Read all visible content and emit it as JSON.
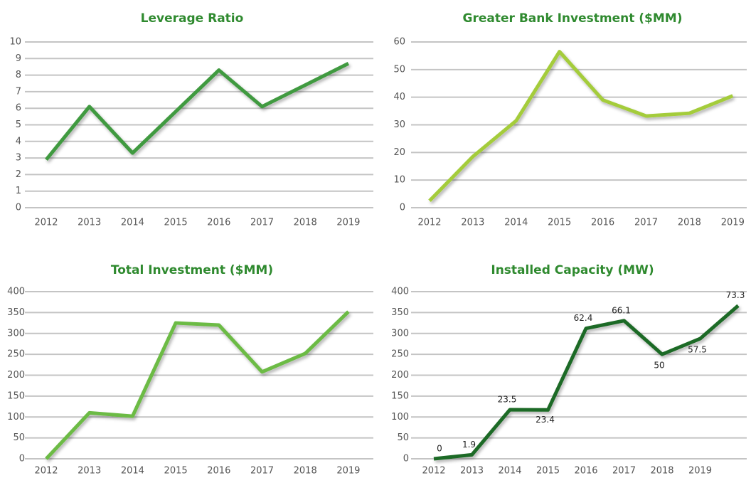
{
  "chart_data": [
    {
      "type": "line",
      "title": "Leverage Ratio",
      "categories": [
        "2012",
        "2013",
        "2014",
        "2015",
        "2016",
        "2017",
        "2018",
        "2019"
      ],
      "series": [
        {
          "color": "#3f9a3f",
          "values": [
            2.9,
            6.1,
            3.3,
            5.8,
            8.3,
            6.1,
            7.4,
            8.7
          ]
        }
      ],
      "ylim": [
        0,
        10
      ],
      "yticks": [
        0,
        1,
        2,
        3,
        4,
        5,
        6,
        7,
        8,
        9,
        10
      ],
      "grid": true
    },
    {
      "type": "line",
      "title": "Greater Bank Investment ($MM)",
      "categories": [
        "2012",
        "2013",
        "2014",
        "2015",
        "2016",
        "2017",
        "2018",
        "2019"
      ],
      "series": [
        {
          "color": "#a4cc3a",
          "values": [
            2.5,
            18.5,
            31.5,
            56.5,
            39,
            33.2,
            34.2,
            40.5
          ]
        }
      ],
      "ylim": [
        0,
        60
      ],
      "yticks": [
        0,
        10,
        20,
        30,
        40,
        50,
        60
      ],
      "grid": true
    },
    {
      "type": "line",
      "title": "Total Investment ($MM)",
      "categories": [
        "2012",
        "2013",
        "2014",
        "2015",
        "2016",
        "2017",
        "2018",
        "2019"
      ],
      "series": [
        {
          "color": "#6cbb45",
          "values": [
            0,
            110,
            102,
            325,
            320,
            208,
            252,
            352
          ]
        }
      ],
      "ylim": [
        0,
        400
      ],
      "yticks": [
        0,
        50,
        100,
        150,
        200,
        250,
        300,
        350,
        400
      ],
      "grid": true
    },
    {
      "type": "line",
      "title": "Installed Capacity (MW)",
      "categories": [
        "2012",
        "2013",
        "2014",
        "2015",
        "2016",
        "2017",
        "2018",
        "2019",
        null
      ],
      "series": [
        {
          "color": "#1f6b25",
          "values": [
            0,
            9.5,
            117.5,
            117,
            312,
            330.5,
            250,
            287.5,
            366.5
          ],
          "value_labels": [
            "0",
            "1.9",
            "23.5",
            "23.4",
            "62.4",
            "66.1",
            "50",
            "57.5",
            "73.3"
          ]
        }
      ],
      "ylim": [
        0,
        400
      ],
      "yticks": [
        0,
        50,
        100,
        150,
        200,
        250,
        300,
        350,
        400
      ],
      "grid": true
    }
  ]
}
